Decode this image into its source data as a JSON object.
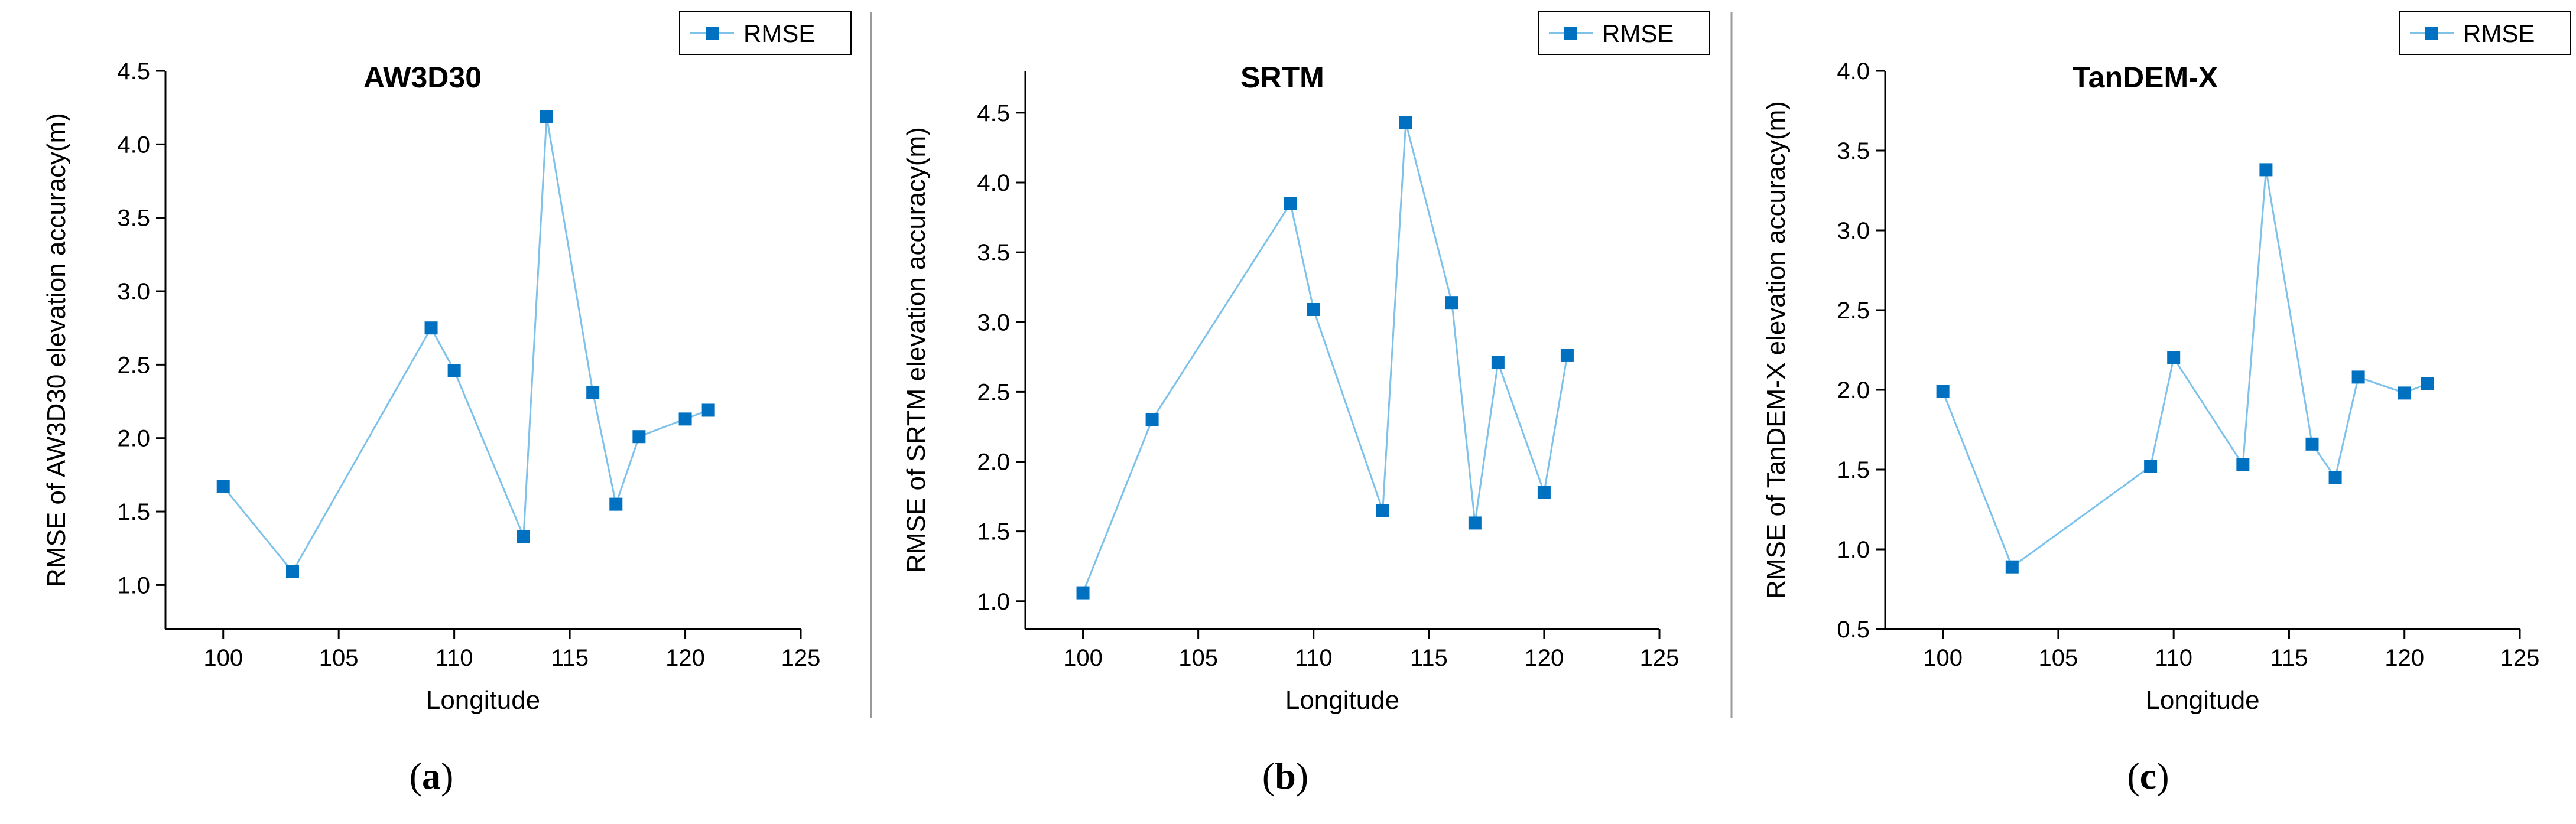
{
  "chart_data": [
    {
      "type": "line",
      "title": "AW3D30",
      "xlabel": "Longitude",
      "ylabel": "RMSE of AW3D30 elevation accuracy(m)",
      "xlim": [
        97.5,
        125
      ],
      "ylim": [
        0.7,
        4.5
      ],
      "xticks": [
        "100",
        "105",
        "110",
        "115",
        "120",
        "125"
      ],
      "yticks": [
        "1.0",
        "1.5",
        "2.0",
        "2.5",
        "3.0",
        "3.5",
        "4.0",
        "4.5"
      ],
      "legend": "RMSE",
      "caption_label": "a",
      "color": "#0070c0",
      "line_color": "#7ec2ea",
      "series": [
        {
          "name": "RMSE",
          "x": [
            100,
            103,
            109,
            110,
            113,
            114,
            116,
            117,
            118,
            120,
            121
          ],
          "values": [
            1.67,
            1.09,
            2.75,
            2.46,
            1.33,
            4.19,
            2.31,
            1.55,
            2.01,
            2.13,
            2.19
          ]
        }
      ]
    },
    {
      "type": "line",
      "title": "SRTM",
      "xlabel": "Longitude",
      "ylabel": "RMSE of SRTM elevation accuracy(m)",
      "xlim": [
        97.5,
        125
      ],
      "ylim": [
        0.8,
        4.8
      ],
      "xticks": [
        "100",
        "105",
        "110",
        "115",
        "120",
        "125"
      ],
      "yticks": [
        "1.0",
        "1.5",
        "2.0",
        "2.5",
        "3.0",
        "3.5",
        "4.0",
        "4.5"
      ],
      "legend": "RMSE",
      "caption_label": "b",
      "color": "#0070c0",
      "line_color": "#7ec2ea",
      "series": [
        {
          "name": "RMSE",
          "x": [
            100,
            103,
            109,
            110,
            113,
            114,
            116,
            117,
            118,
            120,
            121
          ],
          "values": [
            1.06,
            2.3,
            3.85,
            3.09,
            1.65,
            4.43,
            3.14,
            1.56,
            2.71,
            1.78,
            2.76
          ]
        }
      ]
    },
    {
      "type": "line",
      "title": "TanDEM-X",
      "xlabel": "Longitude",
      "ylabel": "RMSE of TanDEM-X elevation accuracy(m)",
      "xlim": [
        97.5,
        125
      ],
      "ylim": [
        0.5,
        4.0
      ],
      "xticks": [
        "100",
        "105",
        "110",
        "115",
        "120",
        "125"
      ],
      "yticks": [
        "0.5",
        "1.0",
        "1.5",
        "2.0",
        "2.5",
        "3.0",
        "3.5",
        "4.0"
      ],
      "legend": "RMSE",
      "caption_label": "c",
      "color": "#0070c0",
      "line_color": "#7ec2ea",
      "series": [
        {
          "name": "RMSE",
          "x": [
            100,
            103,
            109,
            110,
            113,
            114,
            116,
            117,
            118,
            120,
            121
          ],
          "values": [
            1.99,
            0.89,
            1.52,
            2.2,
            1.53,
            3.38,
            1.66,
            1.45,
            2.08,
            1.98,
            2.04
          ]
        }
      ]
    }
  ],
  "caption_parens": [
    "(",
    ")"
  ]
}
